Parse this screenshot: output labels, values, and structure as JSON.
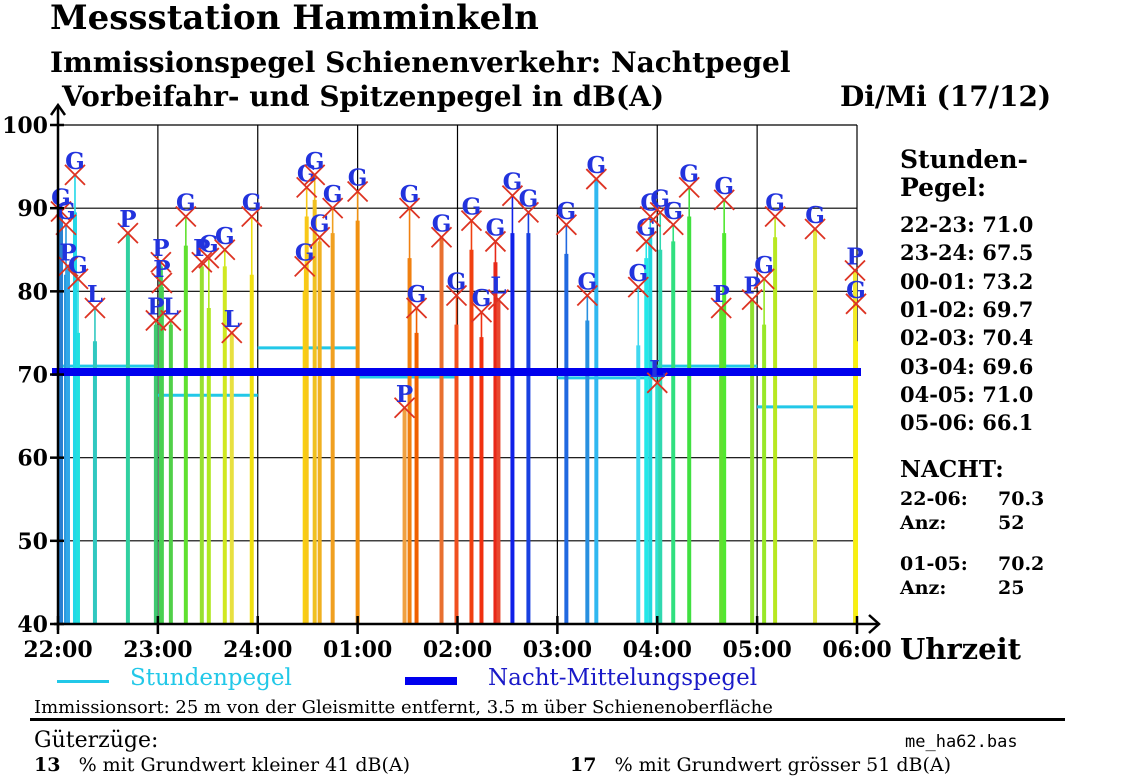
{
  "header": {
    "title": "Messstation Hamminkeln",
    "subtitle1": "Immissionspegel Schienenverkehr: Nachtpegel",
    "subtitle2": "Vorbeifahr- und Spitzenpegel in dB(A)",
    "day": "Di/Mi (17/12)"
  },
  "stundenpegel": {
    "heading1": "Stunden-",
    "heading2": "Pegel:",
    "rows": [
      {
        "range": "22-23:",
        "value": "71.0"
      },
      {
        "range": "23-24:",
        "value": "67.5"
      },
      {
        "range": "00-01:",
        "value": "73.2"
      },
      {
        "range": "01-02:",
        "value": "69.7"
      },
      {
        "range": "02-03:",
        "value": "70.4"
      },
      {
        "range": "03-04:",
        "value": "69.6"
      },
      {
        "range": "04-05:",
        "value": "71.0"
      },
      {
        "range": "05-06:",
        "value": "66.1"
      }
    ]
  },
  "nacht": {
    "heading": "NACHT:",
    "blocks": [
      {
        "range": "22-06:",
        "value": "70.3",
        "anz_label": "Anz:",
        "anz": "52"
      },
      {
        "range": "01-05:",
        "value": "70.2",
        "anz_label": "Anz:",
        "anz": "25"
      }
    ]
  },
  "legend": {
    "stunden": "Stundenpegel",
    "nacht": "Nacht-Mittelungspegel",
    "stunden_color": "#22c8e8",
    "nacht_color": "#0000ee"
  },
  "footer": {
    "location": "Immissionsort: 25 m von der Gleismitte entfernt, 3.5 m über Schienenoberfläche",
    "gueterzuege": "Güterzüge:",
    "filename": "me_ha62.bas",
    "pct_low_num": "13",
    "pct_low_text": "% mit Grundwert kleiner 41 dB(A)",
    "pct_high_num": "17",
    "pct_high_text": "% mit Grundwert grösser 51 dB(A)"
  },
  "chart_data": {
    "type": "bar",
    "title": "Vorbeifahr- und Spitzenpegel in dB(A)",
    "xlabel": "Uhrzeit",
    "ylabel": "dB(A)",
    "ylim": [
      40,
      100
    ],
    "yticks": [
      40,
      50,
      60,
      70,
      80,
      90,
      100
    ],
    "xticks": [
      "22:00",
      "23:00",
      "24:00",
      "01:00",
      "02:00",
      "03:00",
      "04:00",
      "05:00",
      "06:00"
    ],
    "x_unit": "hours after 22:00",
    "xlim": [
      0,
      8
    ],
    "grid": true,
    "legend_position": "bottom",
    "marker_color": "#dd3322",
    "label_color": "#2233dd",
    "night_average": 70.3,
    "hourly_levels": [
      71.0,
      67.5,
      73.2,
      69.7,
      70.4,
      69.6,
      71.0,
      66.1
    ],
    "events": [
      {
        "t": 0.03,
        "peak": 89.6,
        "leq": 89.0,
        "cls": "G",
        "color": "#2a7fd0"
      },
      {
        "t": 0.08,
        "peak": 88.0,
        "leq": 82.0,
        "cls": "G",
        "color": "#2a9ae0"
      },
      {
        "t": 0.1,
        "peak": 83.0,
        "leq": 83.0,
        "cls": "P",
        "color": "#30a8e8"
      },
      {
        "t": 0.17,
        "peak": 94.0,
        "leq": 89.5,
        "cls": "G",
        "color": "#22d8e8"
      },
      {
        "t": 0.2,
        "peak": 81.5,
        "leq": 75.0,
        "cls": "G",
        "color": "#22e0e0"
      },
      {
        "t": 0.37,
        "peak": 78.0,
        "leq": 74.0,
        "cls": "L",
        "color": "#30c8c0"
      },
      {
        "t": 0.7,
        "peak": 87.0,
        "leq": 87.0,
        "cls": "P",
        "color": "#30d0a0"
      },
      {
        "t": 0.98,
        "peak": 76.5,
        "leq": 76.0,
        "cls": "P",
        "color": "#40c870"
      },
      {
        "t": 1.03,
        "peak": 83.5,
        "leq": 83.0,
        "cls": "P",
        "color": "#40d060"
      },
      {
        "t": 1.04,
        "peak": 81.0,
        "leq": 80.5,
        "cls": "P",
        "color": "#48d050"
      },
      {
        "t": 1.13,
        "peak": 76.5,
        "leq": 76.0,
        "cls": "L",
        "color": "#50d048"
      },
      {
        "t": 1.28,
        "peak": 89.0,
        "leq": 85.5,
        "cls": "G",
        "color": "#60e030"
      },
      {
        "t": 1.44,
        "peak": 83.5,
        "leq": 83.0,
        "cls": "P",
        "color": "#98e030"
      },
      {
        "t": 1.51,
        "peak": 84.0,
        "leq": 78.0,
        "cls": "G",
        "color": "#b0e820"
      },
      {
        "t": 1.67,
        "peak": 85.0,
        "leq": 83.0,
        "cls": "G",
        "color": "#d0e820"
      },
      {
        "t": 1.74,
        "peak": 75.0,
        "leq": 75.0,
        "cls": "L",
        "color": "#e8e040"
      },
      {
        "t": 1.94,
        "peak": 89.0,
        "leq": 82.0,
        "cls": "G",
        "color": "#f0e010"
      },
      {
        "t": 2.47,
        "peak": 83.0,
        "leq": 80.0,
        "cls": "G",
        "color": "#f8d010"
      },
      {
        "t": 2.49,
        "peak": 92.5,
        "leq": 89.0,
        "cls": "G",
        "color": "#f8c818"
      },
      {
        "t": 2.57,
        "peak": 94.0,
        "leq": 91.0,
        "cls": "G",
        "color": "#f0c020"
      },
      {
        "t": 2.62,
        "peak": 86.5,
        "leq": 86.0,
        "cls": "G",
        "color": "#f0b020"
      },
      {
        "t": 2.75,
        "peak": 90.0,
        "leq": 87.0,
        "cls": "G",
        "color": "#f0a020"
      },
      {
        "t": 3.0,
        "peak": 92.0,
        "leq": 88.5,
        "cls": "G",
        "color": "#f09010"
      },
      {
        "t": 3.47,
        "peak": 66.0,
        "leq": 66.0,
        "cls": "P",
        "color": "#f0a040"
      },
      {
        "t": 3.52,
        "peak": 90.0,
        "leq": 84.0,
        "cls": "G",
        "color": "#f08010"
      },
      {
        "t": 3.59,
        "peak": 78.0,
        "leq": 75.0,
        "cls": "G",
        "color": "#f06000"
      },
      {
        "t": 3.84,
        "peak": 86.5,
        "leq": 86.5,
        "cls": "G",
        "color": "#e87030"
      },
      {
        "t": 3.99,
        "peak": 79.5,
        "leq": 76.0,
        "cls": "G",
        "color": "#f05020"
      },
      {
        "t": 4.14,
        "peak": 88.5,
        "leq": 85.0,
        "cls": "G",
        "color": "#f04010"
      },
      {
        "t": 4.24,
        "peak": 77.5,
        "leq": 74.5,
        "cls": "G",
        "color": "#f03010"
      },
      {
        "t": 4.38,
        "peak": 86.0,
        "leq": 83.5,
        "cls": "G",
        "color": "#e82818"
      },
      {
        "t": 4.41,
        "peak": 79.0,
        "leq": 79.0,
        "cls": "L",
        "color": "#e84830"
      },
      {
        "t": 4.55,
        "peak": 91.5,
        "leq": 87.0,
        "cls": "G",
        "color": "#1020e8"
      },
      {
        "t": 4.71,
        "peak": 89.5,
        "leq": 87.0,
        "cls": "G",
        "color": "#1840e0"
      },
      {
        "t": 5.09,
        "peak": 88.0,
        "leq": 84.5,
        "cls": "G",
        "color": "#2068e0"
      },
      {
        "t": 5.3,
        "peak": 79.5,
        "leq": 76.5,
        "cls": "G",
        "color": "#2890e0"
      },
      {
        "t": 5.39,
        "peak": 93.5,
        "leq": 93.5,
        "cls": "G",
        "color": "#30b8f0"
      },
      {
        "t": 5.81,
        "peak": 80.5,
        "leq": 73.5,
        "cls": "G",
        "color": "#40d8f0"
      },
      {
        "t": 5.89,
        "peak": 86.0,
        "leq": 84.0,
        "cls": "G",
        "color": "#22e8e8"
      },
      {
        "t": 5.93,
        "peak": 89.0,
        "leq": 86.5,
        "cls": "G",
        "color": "#22d8e0"
      },
      {
        "t": 6.0,
        "peak": 69.0,
        "leq": 69.0,
        "cls": "L",
        "color": "#30e0d0"
      },
      {
        "t": 6.03,
        "peak": 89.5,
        "leq": 85.0,
        "cls": "G",
        "color": "#30d8b0"
      },
      {
        "t": 6.16,
        "peak": 88.0,
        "leq": 86.0,
        "cls": "G",
        "color": "#30e080"
      },
      {
        "t": 6.32,
        "peak": 92.5,
        "leq": 89.0,
        "cls": "G",
        "color": "#40e040"
      },
      {
        "t": 6.67,
        "peak": 91.0,
        "leq": 87.0,
        "cls": "G",
        "color": "#50e830"
      },
      {
        "t": 6.64,
        "peak": 78.0,
        "leq": 78.0,
        "cls": "P",
        "color": "#60e030"
      },
      {
        "t": 6.95,
        "peak": 79.0,
        "leq": 79.0,
        "cls": "P",
        "color": "#90e030"
      },
      {
        "t": 7.07,
        "peak": 81.5,
        "leq": 76.0,
        "cls": "G",
        "color": "#98e828"
      },
      {
        "t": 7.18,
        "peak": 89.0,
        "leq": 86.5,
        "cls": "G",
        "color": "#b8e820"
      },
      {
        "t": 7.58,
        "peak": 87.5,
        "leq": 87.5,
        "cls": "G",
        "color": "#e0e840"
      },
      {
        "t": 7.98,
        "peak": 82.5,
        "leq": 82.5,
        "cls": "P",
        "color": "#f0e830"
      },
      {
        "t": 7.99,
        "peak": 78.5,
        "leq": 74.0,
        "cls": "G",
        "color": "#f8f010"
      }
    ]
  }
}
